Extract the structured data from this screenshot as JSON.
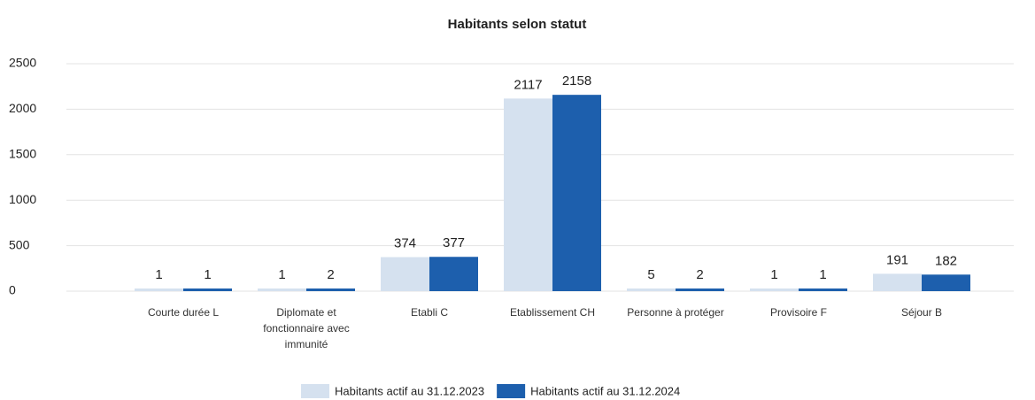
{
  "chart_data": {
    "type": "bar",
    "title": "Habitants selon statut",
    "categories": [
      "Courte durée L",
      "Diplomate et fonctionnaire avec immunité",
      "Etabli C",
      "Etablissement CH",
      "Personne à protéger",
      "Provisoire F",
      "Séjour B"
    ],
    "series": [
      {
        "name": "Habitants actif au 31.12.2023",
        "color": "#d5e1ef",
        "values": [
          1,
          1,
          374,
          2117,
          5,
          1,
          191
        ]
      },
      {
        "name": "Habitants actif au 31.12.2024",
        "color": "#1d5fad",
        "values": [
          1,
          2,
          377,
          2158,
          2,
          1,
          182
        ]
      }
    ],
    "ylim": [
      0,
      2500
    ],
    "yticks": [
      0,
      500,
      1000,
      1500,
      2000,
      2500
    ],
    "grid": true,
    "legend": "bottom"
  }
}
